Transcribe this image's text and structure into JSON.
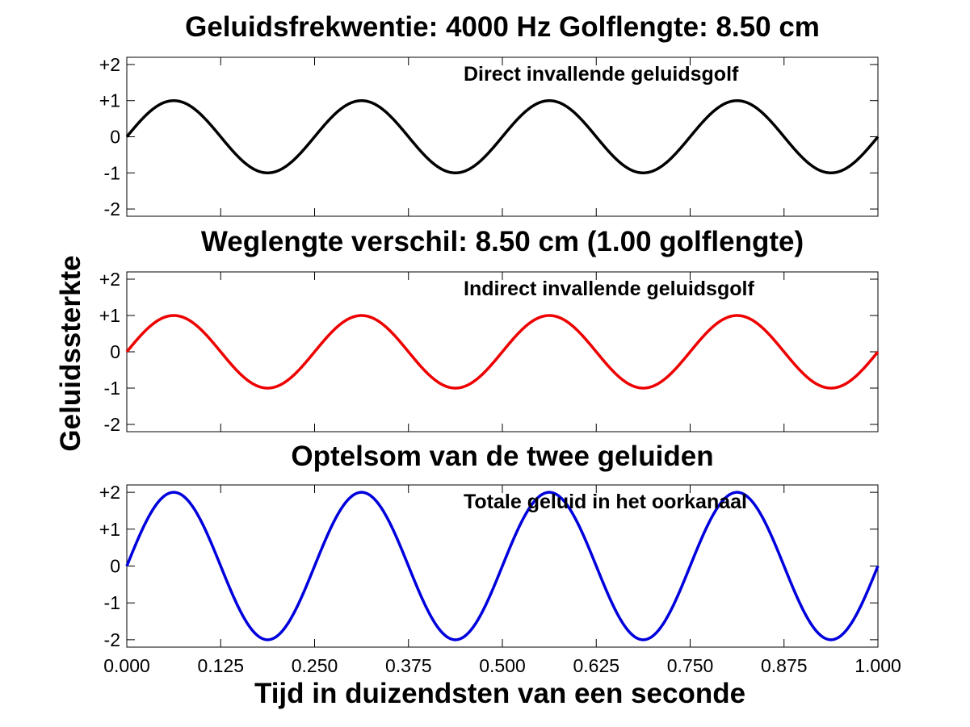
{
  "figure": {
    "ylabel": "Geluidssterkte",
    "xlabel": "Tijd in duizendsten van een seconde"
  },
  "chart_data": [
    {
      "type": "line",
      "title": "Geluidsfrekwentie: 4000 Hz  Golflengte: 8.50 cm",
      "annotation": "Direct invallende geluidsgolf",
      "function": "y = 1 * sin(2*pi*4*t)",
      "frequency_hz": 4000,
      "amplitude": 1,
      "color": "#000000",
      "xlim": [
        0,
        1
      ],
      "ylim": [
        -2.2,
        2.2
      ],
      "yticks": [
        2,
        1,
        0,
        -1,
        -2
      ],
      "ytick_labels": [
        "+2",
        "+1",
        "0",
        "-1",
        "-2"
      ],
      "xticks": [
        0,
        0.125,
        0.25,
        0.375,
        0.5,
        0.625,
        0.75,
        0.875,
        1.0
      ],
      "show_xtick_labels": false,
      "xtick_labels": []
    },
    {
      "type": "line",
      "title": "Weglengte verschil: 8.50 cm (1.00 golflengte)",
      "annotation": "Indirect invallende geluidsgolf",
      "function": "y = 1 * sin(2*pi*4*t)",
      "frequency_hz": 4000,
      "amplitude": 1,
      "color": "#ee0000",
      "xlim": [
        0,
        1
      ],
      "ylim": [
        -2.2,
        2.2
      ],
      "yticks": [
        2,
        1,
        0,
        -1,
        -2
      ],
      "ytick_labels": [
        "+2",
        "+1",
        "0",
        "-1",
        "-2"
      ],
      "xticks": [
        0,
        0.125,
        0.25,
        0.375,
        0.5,
        0.625,
        0.75,
        0.875,
        1.0
      ],
      "show_xtick_labels": false,
      "xtick_labels": []
    },
    {
      "type": "line",
      "title": "Optelsom van de twee geluiden",
      "annotation": "Totale geluid in het oorkanaal",
      "function": "y = 2 * sin(2*pi*4*t)",
      "frequency_hz": 4000,
      "amplitude": 2,
      "color": "#0000dd",
      "xlim": [
        0,
        1
      ],
      "ylim": [
        -2.2,
        2.2
      ],
      "yticks": [
        2,
        1,
        0,
        -1,
        -2
      ],
      "ytick_labels": [
        "+2",
        "+1",
        "0",
        "-1",
        "-2"
      ],
      "xticks": [
        0,
        0.125,
        0.25,
        0.375,
        0.5,
        0.625,
        0.75,
        0.875,
        1.0
      ],
      "show_xtick_labels": true,
      "xtick_labels": [
        "0.000",
        "0.125",
        "0.250",
        "0.375",
        "0.500",
        "0.625",
        "0.750",
        "0.875",
        "1.000"
      ]
    }
  ]
}
